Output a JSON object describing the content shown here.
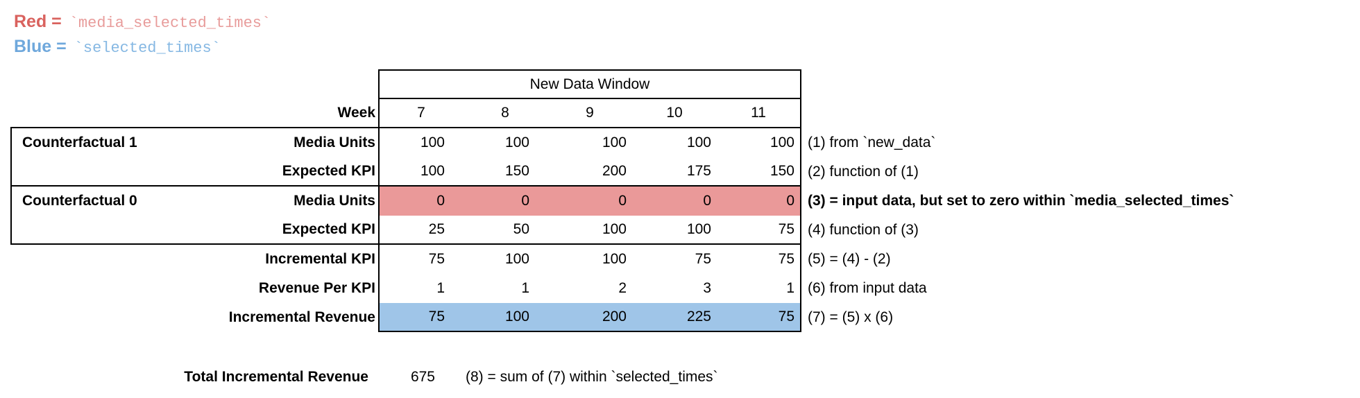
{
  "legend": {
    "red": {
      "label": "Red = ",
      "code": "`media_selected_times`"
    },
    "blue": {
      "label": "Blue = ",
      "code": "`selected_times`"
    }
  },
  "colors": {
    "red_highlight": "#ea9999",
    "blue_highlight": "#9fc5e8",
    "legend_red_label": "#d9625e",
    "legend_red_code": "#e89c9b",
    "legend_blue_label": "#6fa8dc",
    "legend_blue_code": "#86b8e3",
    "border": "#000000"
  },
  "table": {
    "window_header": "New Data Window",
    "week_label": "Week",
    "weeks": [
      "7",
      "8",
      "9",
      "10",
      "11"
    ],
    "rows": [
      {
        "group": "Counterfactual 1",
        "label": "Media Units",
        "values": [
          "100",
          "100",
          "100",
          "100",
          "100"
        ],
        "note": "(1) from `new_data`",
        "highlight": "none"
      },
      {
        "group": "",
        "label": "Expected KPI",
        "values": [
          "100",
          "150",
          "200",
          "175",
          "150"
        ],
        "note": "(2) function of (1)",
        "highlight": "none"
      },
      {
        "group": "Counterfactual 0",
        "label": "Media Units",
        "values": [
          "0",
          "0",
          "0",
          "0",
          "0"
        ],
        "note": "(3) = input data, but set to zero within `media_selected_times`",
        "highlight": "red"
      },
      {
        "group": "",
        "label": "Expected KPI",
        "values": [
          "25",
          "50",
          "100",
          "100",
          "75"
        ],
        "note": "(4) function of (3)",
        "highlight": "none"
      },
      {
        "group": "",
        "label": "Incremental KPI",
        "values": [
          "75",
          "100",
          "100",
          "75",
          "75"
        ],
        "note": "(5) = (4) - (2)",
        "highlight": "none"
      },
      {
        "group": "",
        "label": "Revenue Per KPI",
        "values": [
          "1",
          "1",
          "2",
          "3",
          "1"
        ],
        "note": "(6) from input data",
        "highlight": "none"
      },
      {
        "group": "",
        "label": "Incremental Revenue",
        "values": [
          "75",
          "100",
          "200",
          "225",
          "75"
        ],
        "note": "(7) = (5) x (6)",
        "highlight": "blue"
      }
    ]
  },
  "total": {
    "label": "Total Incremental Revenue",
    "value": "675",
    "note": "(8) = sum of (7) within `selected_times`"
  }
}
